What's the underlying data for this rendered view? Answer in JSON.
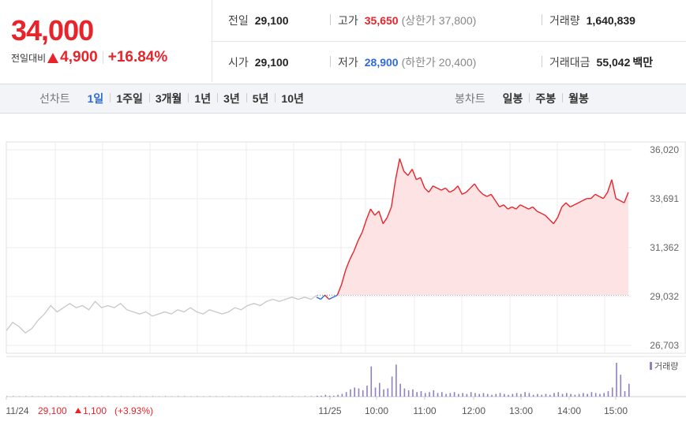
{
  "quote": {
    "price": "34,000",
    "change_label": "전일대비",
    "change_amount": "4,900",
    "change_percent": "+16.84%",
    "stats": {
      "prev_close_label": "전일",
      "prev_close": "29,100",
      "high_label": "고가",
      "high": "35,650",
      "upper_limit": "(상한가 37,800)",
      "volume_label": "거래량",
      "volume": "1,640,839",
      "open_label": "시가",
      "open": "29,100",
      "low_label": "저가",
      "low": "28,900",
      "lower_limit": "(하한가 20,400)",
      "trade_value_label": "거래대금",
      "trade_value": "55,042",
      "trade_value_unit": "백만"
    }
  },
  "tabs": {
    "line_label": "선차트",
    "line": [
      "1일",
      "1주일",
      "3개월",
      "1년",
      "3년",
      "5년",
      "10년"
    ],
    "line_active": 0,
    "candle_label": "봉차트",
    "candle": [
      "일봉",
      "주봉",
      "월봉"
    ]
  },
  "colors": {
    "up": "#e8232a",
    "down": "#2f6bd3",
    "prev_day": "#c8c8c8",
    "fill": "#fde3e4",
    "volume": "#8f7fc4"
  },
  "chart_data": {
    "type": "line",
    "price_axis": {
      "ticks": [
        "36,020",
        "33,691",
        "31,362",
        "29,032",
        "26,703"
      ],
      "ylim": [
        26703,
        36020
      ]
    },
    "reference_price": 29100,
    "x_ticks": [
      "11/24",
      "11/25",
      "10:00",
      "11:00",
      "12:00",
      "13:00",
      "14:00",
      "15:00"
    ],
    "prev_day_note": {
      "date": "11/24",
      "close": "29,100",
      "change": "1,100",
      "pct": "(+3.93%)"
    },
    "volume_legend": "거래량",
    "prev_day_series": {
      "name": "11/24",
      "values": [
        27400,
        27800,
        27600,
        27300,
        27500,
        27900,
        28200,
        28600,
        28300,
        28500,
        28700,
        28500,
        28600,
        28400,
        28800,
        28500,
        28600,
        28500,
        28700,
        28400,
        28300,
        28200,
        28300,
        28100,
        28200,
        28300,
        28200,
        28400,
        28300,
        28500,
        28300,
        28200,
        28400,
        28300,
        28200,
        28300,
        28500,
        28400,
        28600,
        28700,
        28600,
        28800,
        28900,
        28800,
        28900,
        29000,
        28900,
        29000,
        28900,
        29100
      ]
    },
    "today_series": {
      "name": "11/25",
      "values": [
        29000,
        28900,
        29100,
        28900,
        29000,
        29100,
        29600,
        30300,
        30800,
        31200,
        31700,
        32100,
        32700,
        33200,
        32900,
        33100,
        32500,
        32800,
        33300,
        34600,
        35600,
        35000,
        34800,
        35100,
        34600,
        34700,
        34200,
        34000,
        34300,
        34200,
        34100,
        34200,
        34000,
        34100,
        34300,
        33900,
        34000,
        34200,
        34400,
        34100,
        33900,
        33800,
        33900,
        33600,
        33300,
        33400,
        33200,
        33300,
        33200,
        33400,
        33300,
        33200,
        33300,
        33100,
        33000,
        32900,
        32700,
        32500,
        32800,
        33300,
        33500,
        33300,
        33400,
        33500,
        33600,
        33700,
        33700,
        33900,
        33800,
        33700,
        34000,
        34600,
        33700,
        33600,
        33500,
        34000
      ]
    },
    "volume": {
      "prev_day": [
        1,
        1,
        0,
        1,
        1,
        0,
        1,
        1,
        1,
        0,
        1,
        1,
        0,
        1,
        0,
        1,
        1,
        0,
        1,
        0,
        1,
        1,
        0,
        1,
        0,
        1,
        0,
        1,
        1,
        0,
        1,
        0,
        1,
        1,
        0,
        1,
        0,
        1,
        1,
        0,
        1,
        0,
        1,
        1,
        0,
        1,
        0,
        1,
        1,
        0
      ],
      "today": [
        1,
        1,
        2,
        1,
        1,
        2,
        3,
        5,
        8,
        10,
        9,
        7,
        12,
        33,
        10,
        15,
        8,
        9,
        22,
        35,
        14,
        9,
        7,
        8,
        5,
        6,
        4,
        5,
        7,
        4,
        5,
        3,
        4,
        5,
        3,
        4,
        3,
        5,
        4,
        3,
        4,
        3,
        2,
        3,
        4,
        3,
        2,
        3,
        4,
        3,
        5,
        4,
        2,
        3,
        2,
        3,
        2,
        4,
        5,
        3,
        4,
        3,
        2,
        3,
        4,
        3,
        5,
        4,
        3,
        4,
        6,
        10,
        37,
        24,
        6,
        14
      ]
    }
  }
}
